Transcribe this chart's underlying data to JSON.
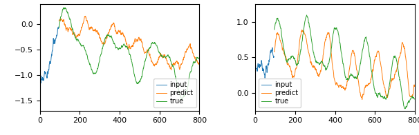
{
  "fig_width": 6.06,
  "fig_height": 1.96,
  "dpi": 100,
  "left_plot": {
    "xlim": [
      0,
      800
    ],
    "ylim": [
      -1.7,
      0.4
    ],
    "yticks": [
      0.0,
      -0.5,
      -1.0,
      -1.5
    ],
    "xticks": [
      0,
      200,
      400,
      600,
      800
    ],
    "input_color": "#1f77b4",
    "predict_color": "#ff7f0e",
    "true_color": "#2ca02c",
    "legend_labels": [
      "input",
      "predict",
      "true"
    ],
    "legend_loc": "lower right"
  },
  "right_plot": {
    "xlim": [
      0,
      800
    ],
    "ylim": [
      -0.25,
      1.25
    ],
    "yticks": [
      0.0,
      0.5,
      1.0
    ],
    "xticks": [
      0,
      200,
      400,
      600,
      800
    ],
    "input_color": "#1f77b4",
    "predict_color": "#ff7f0e",
    "true_color": "#2ca02c",
    "legend_labels": [
      "input",
      "predict",
      "true"
    ],
    "legend_loc": "lower left"
  }
}
